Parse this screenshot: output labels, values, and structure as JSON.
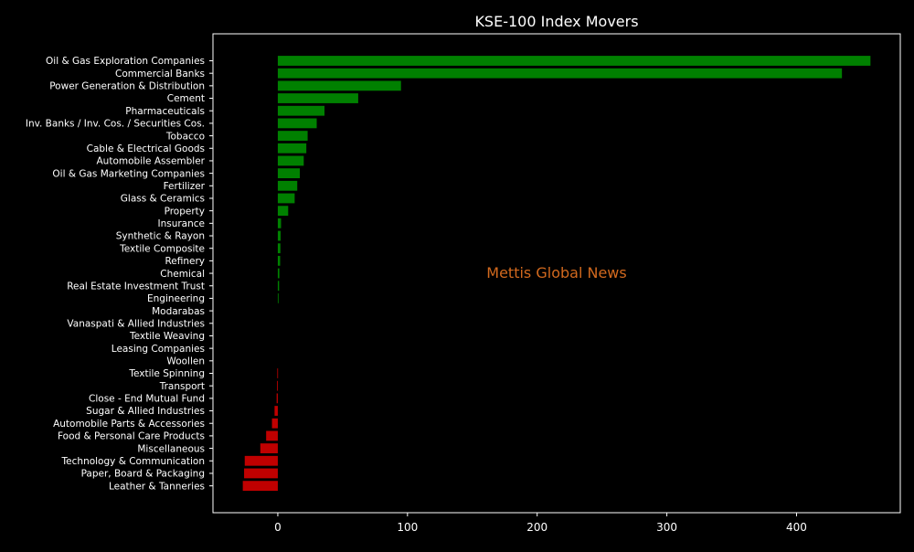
{
  "chart_data": {
    "type": "bar",
    "orientation": "horizontal",
    "title": "KSE-100 Index Movers",
    "xlabel": "",
    "ylabel": "",
    "xlim": [
      -50,
      480
    ],
    "xticks": [
      0,
      100,
      200,
      300,
      400
    ],
    "grid": false,
    "legend": "none",
    "watermark": "Mettis Global News",
    "categories": [
      "Oil & Gas Exploration Companies",
      "Commercial Banks",
      "Power Generation & Distribution",
      "Cement",
      "Pharmaceuticals",
      "Inv. Banks / Inv. Cos. / Securities Cos.",
      "Tobacco",
      "Cable & Electrical Goods",
      "Automobile Assembler",
      "Oil & Gas Marketing Companies",
      "Fertilizer",
      "Glass & Ceramics",
      "Property",
      "Insurance",
      "Synthetic & Rayon",
      "Textile Composite",
      "Refinery",
      "Chemical",
      "Real Estate Investment Trust",
      "Engineering",
      "Modarabas",
      "Vanaspati & Allied Industries",
      "Textile Weaving",
      "Leasing Companies",
      "Woollen",
      "Textile Spinning",
      "Transport",
      "Close - End Mutual Fund",
      "Sugar & Allied Industries",
      "Automobile Parts & Accessories",
      "Food & Personal Care Products",
      "Miscellaneous",
      "Technology & Communication",
      "Paper, Board & Packaging",
      "Leather & Tanneries"
    ],
    "values": [
      457,
      435,
      95,
      62,
      36,
      30,
      23,
      22,
      20,
      17,
      15,
      13,
      8,
      2.5,
      2.2,
      2,
      1.8,
      1.2,
      1,
      0.5,
      0,
      0,
      0,
      0,
      0,
      -0.4,
      -0.6,
      -0.9,
      -2.5,
      -4.5,
      -9,
      -13.5,
      -25.5,
      -26,
      -27
    ],
    "colors": {
      "positive": "#008000",
      "negative": "#c00000",
      "background": "#000000",
      "text": "#ffffff",
      "watermark": "#d2691e"
    }
  }
}
